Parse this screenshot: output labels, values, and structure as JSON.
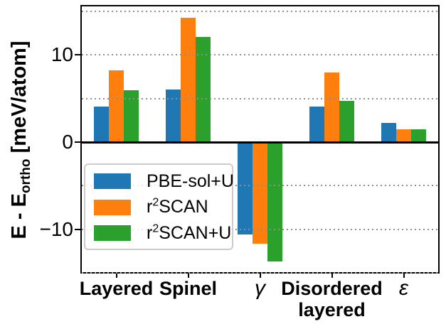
{
  "chart_data": {
    "type": "bar",
    "title": "",
    "ylabel": {
      "pre": "E - E",
      "sub": "ortho",
      "post": " [meV/atom]"
    },
    "ylabel_text": "E - E_ortho [meV/atom]",
    "categories": [
      {
        "lines": [
          "Layered"
        ],
        "emphasis": "bold"
      },
      {
        "lines": [
          "Spinel"
        ],
        "emphasis": "bold"
      },
      {
        "lines": [
          "γ"
        ],
        "emphasis": "italic"
      },
      {
        "lines": [
          "Disordered",
          "layered"
        ],
        "emphasis": "bold"
      },
      {
        "lines": [
          "ε"
        ],
        "emphasis": "italic"
      }
    ],
    "series": [
      {
        "name": "PBE-sol+U",
        "name_parts": {
          "pre": "PBE-sol+U",
          "sup": "",
          "post": ""
        },
        "color": "#1f77b4",
        "values": [
          4.1,
          6.0,
          -10.6,
          4.1,
          2.2
        ]
      },
      {
        "name": "r²SCAN",
        "name_parts": {
          "pre": "r",
          "sup": "2",
          "post": "SCAN"
        },
        "color": "#ff7f0e",
        "values": [
          8.2,
          14.2,
          -11.6,
          8.0,
          1.5
        ]
      },
      {
        "name": "r²SCAN+U",
        "name_parts": {
          "pre": "r",
          "sup": "2",
          "post": "SCAN+U"
        },
        "color": "#2ca02c",
        "values": [
          5.9,
          12.0,
          -13.7,
          4.7,
          1.5
        ]
      }
    ],
    "ylim": [
      -15.05,
      15.7
    ],
    "yticks": [
      {
        "value": 10,
        "label": "10"
      },
      {
        "value": 0,
        "label": "0"
      },
      {
        "value": -10,
        "label": "−10"
      }
    ],
    "gridline_values": [
      15,
      10,
      5,
      -5,
      -10,
      -15
    ],
    "grid_style": "dotted horizontal",
    "legend_position": "lower left",
    "colors": {
      "grid": "#8f8f8f",
      "axis": "#000000",
      "background": "#ffffff",
      "legend_border": "#cccccc"
    }
  }
}
